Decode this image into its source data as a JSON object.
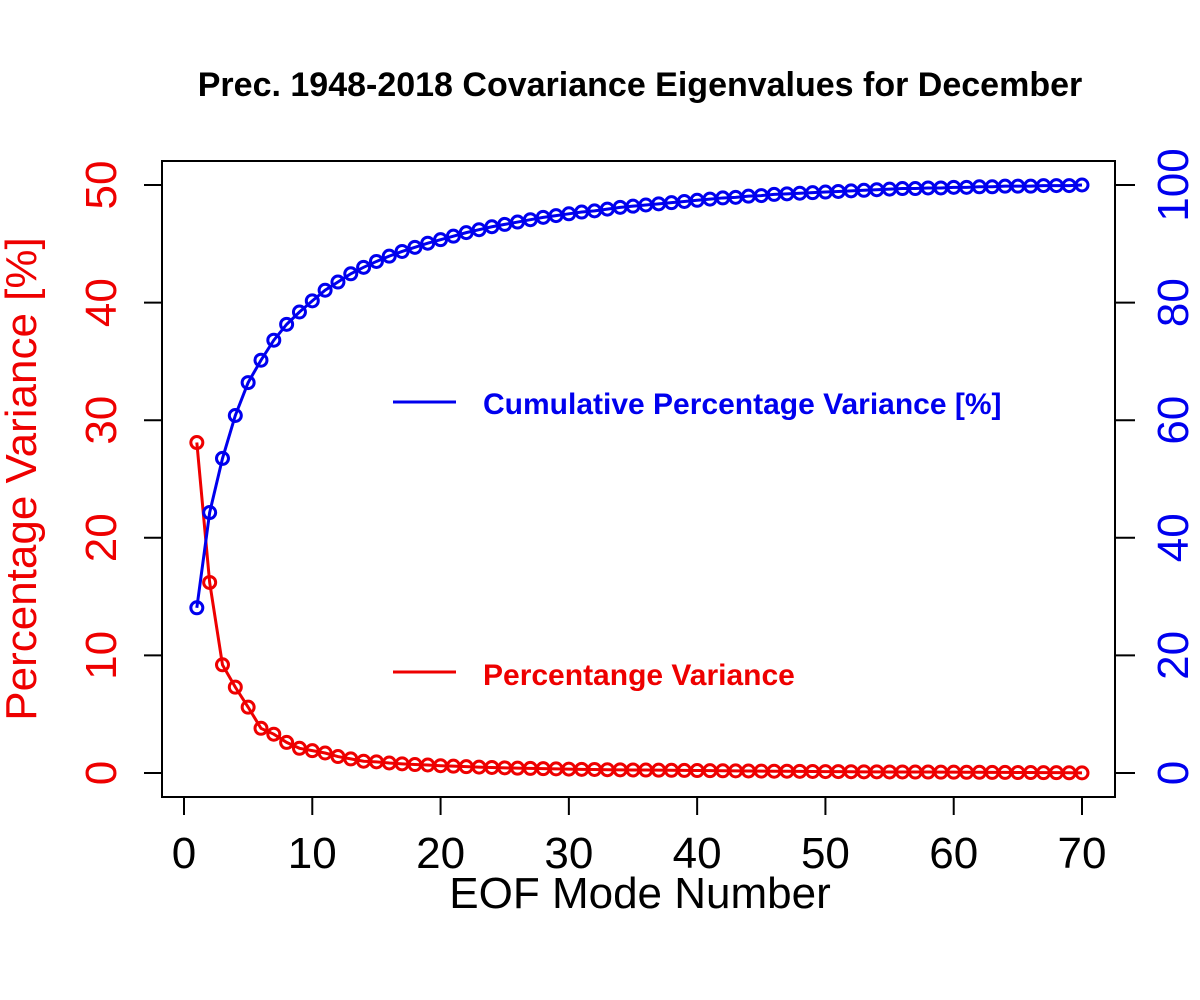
{
  "chart_data": {
    "type": "line",
    "title": "Prec. 1948-2018 Covariance Eigenvalues for December",
    "xlabel": "EOF Mode Number",
    "ylabel_left": "Percentage Variance [%]",
    "ylabel_right": "",
    "xlim": [
      0,
      70
    ],
    "ylim_left": [
      0,
      50
    ],
    "ylim_right": [
      0,
      100
    ],
    "x_ticks": [
      0,
      10,
      20,
      30,
      40,
      50,
      60,
      70
    ],
    "y_ticks_left": [
      0,
      10,
      20,
      30,
      40,
      50
    ],
    "y_ticks_right": [
      0,
      20,
      40,
      60,
      80,
      100
    ],
    "grid": false,
    "x": [
      1,
      2,
      3,
      4,
      5,
      6,
      7,
      8,
      9,
      10,
      11,
      12,
      13,
      14,
      15,
      16,
      17,
      18,
      19,
      20,
      21,
      22,
      23,
      24,
      25,
      26,
      27,
      28,
      29,
      30,
      31,
      32,
      33,
      34,
      35,
      36,
      37,
      38,
      39,
      40,
      41,
      42,
      43,
      44,
      45,
      46,
      47,
      48,
      49,
      50,
      51,
      52,
      53,
      54,
      55,
      56,
      57,
      58,
      59,
      60,
      61,
      62,
      63,
      64,
      65,
      66,
      67,
      68,
      69,
      70
    ],
    "series": [
      {
        "name": "Percentange Variance",
        "axis": "left",
        "color": "#ee0000",
        "values": [
          28.1,
          16.2,
          9.2,
          7.3,
          5.6,
          3.8,
          3.3,
          2.6,
          2.1,
          1.9,
          1.7,
          1.4,
          1.2,
          1.0,
          0.95,
          0.85,
          0.78,
          0.72,
          0.68,
          0.62,
          0.58,
          0.54,
          0.5,
          0.47,
          0.44,
          0.41,
          0.39,
          0.37,
          0.35,
          0.33,
          0.31,
          0.3,
          0.28,
          0.27,
          0.26,
          0.25,
          0.24,
          0.23,
          0.22,
          0.21,
          0.2,
          0.19,
          0.18,
          0.17,
          0.16,
          0.15,
          0.15,
          0.14,
          0.13,
          0.12,
          0.12,
          0.11,
          0.1,
          0.1,
          0.09,
          0.09,
          0.08,
          0.08,
          0.07,
          0.07,
          0.06,
          0.06,
          0.05,
          0.05,
          0.04,
          0.04,
          0.03,
          0.03,
          0.02,
          0.01
        ]
      },
      {
        "name": "Cumulative Percentage Variance [%]",
        "axis": "right",
        "color": "#0000ee",
        "values": [
          28.1,
          44.3,
          53.5,
          60.8,
          66.4,
          70.2,
          73.6,
          76.3,
          78.4,
          80.3,
          82.1,
          83.5,
          84.9,
          86.0,
          87.0,
          87.9,
          88.7,
          89.4,
          90.1,
          90.7,
          91.3,
          91.9,
          92.4,
          92.9,
          93.3,
          93.7,
          94.1,
          94.5,
          94.8,
          95.1,
          95.4,
          95.6,
          95.9,
          96.2,
          96.4,
          96.6,
          96.8,
          97.0,
          97.2,
          97.4,
          97.6,
          97.8,
          97.9,
          98.1,
          98.2,
          98.4,
          98.5,
          98.6,
          98.7,
          98.8,
          98.9,
          99.0,
          99.1,
          99.2,
          99.3,
          99.4,
          99.4,
          99.5,
          99.5,
          99.6,
          99.6,
          99.7,
          99.7,
          99.8,
          99.8,
          99.8,
          99.9,
          99.9,
          99.9,
          100.0
        ]
      }
    ],
    "legend_placement": "center-right"
  }
}
